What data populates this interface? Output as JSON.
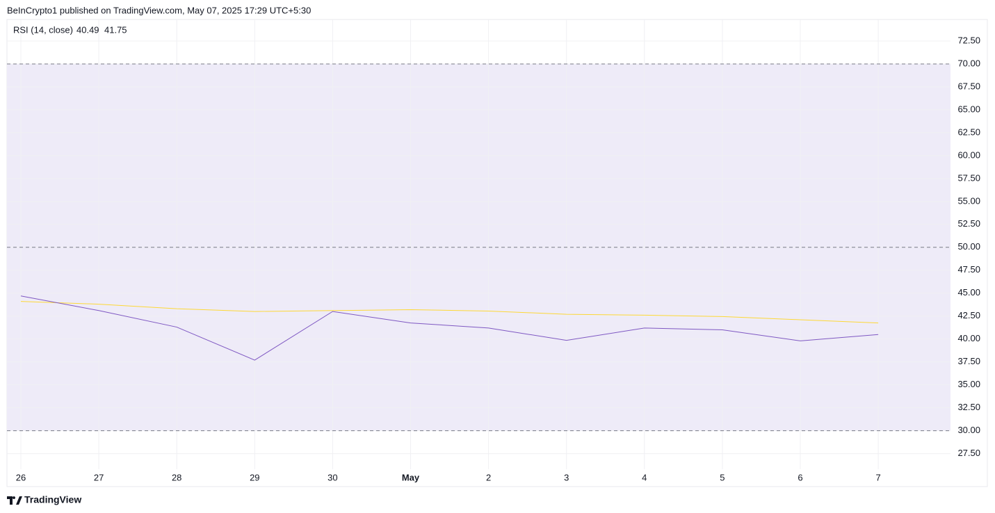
{
  "header": "BeInCrypto1 published on TradingView.com, May 07, 2025 17:29 UTC+5:30",
  "footer": "TradingView",
  "chart_data": {
    "type": "line",
    "categories": [
      "26",
      "27",
      "28",
      "29",
      "30",
      "May",
      "2",
      "3",
      "4",
      "5",
      "6",
      "7"
    ],
    "series": [
      {
        "name": "RSI (14, close)",
        "color": "#7e57c2",
        "values": [
          44.7,
          43.1,
          41.3,
          37.7,
          43.0,
          41.75,
          41.2,
          39.85,
          41.2,
          41.0,
          39.8,
          40.49
        ]
      },
      {
        "color": "#fdd835",
        "values": [
          44.1,
          43.8,
          43.3,
          43.0,
          43.1,
          43.2,
          43.05,
          42.7,
          42.6,
          42.45,
          42.1,
          41.75
        ]
      }
    ],
    "band": [
      30,
      70
    ],
    "band_color": "#eeebf8",
    "hlines": [
      70,
      50,
      30
    ],
    "ylim": [
      25.8,
      74.85
    ],
    "yticks": [
      {
        "value": 27.5,
        "label": "27.50"
      },
      {
        "value": 30,
        "label": "30.00"
      },
      {
        "value": 32.5,
        "label": "32.50"
      },
      {
        "value": 35,
        "label": "35.00"
      },
      {
        "value": 37.5,
        "label": "37.50"
      },
      {
        "value": 40,
        "label": "40.00"
      },
      {
        "value": 42.5,
        "label": "42.50"
      },
      {
        "value": 45,
        "label": "45.00"
      },
      {
        "value": 47.5,
        "label": "47.50"
      },
      {
        "value": 50,
        "label": "50.00"
      },
      {
        "value": 52.5,
        "label": "52.50"
      },
      {
        "value": 55,
        "label": "55.00"
      },
      {
        "value": 57.5,
        "label": "57.50"
      },
      {
        "value": 60,
        "label": "60.00"
      },
      {
        "value": 62.5,
        "label": "62.50"
      },
      {
        "value": 65,
        "label": "65.00"
      },
      {
        "value": 67.5,
        "label": "67.50"
      },
      {
        "value": 70,
        "label": "70.00"
      },
      {
        "value": 72.5,
        "label": "72.50"
      }
    ],
    "grid": true
  }
}
